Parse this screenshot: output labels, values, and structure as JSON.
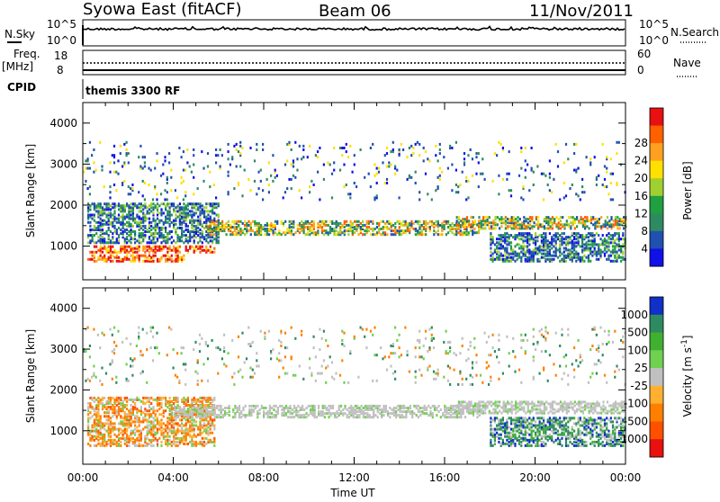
{
  "header": {
    "station": "Syowa East (fitACF)",
    "beam": "Beam 06",
    "date": "11/Nov/2011"
  },
  "strips": {
    "nsky_label": "N.Sky",
    "nsky_ticks": [
      "10^5",
      "10^0"
    ],
    "nsearch_label": "N.Search",
    "nsearch_ticks": [
      "10^5",
      "10^0"
    ],
    "freq_label": "Freq.",
    "freq_unit": "[MHz]",
    "freq_ticks": [
      "18",
      "8"
    ],
    "nave_label": "Nave",
    "nave_ticks": [
      "60",
      "0"
    ],
    "cpid_label": "CPID",
    "cpid_text": "themis 3300 RF"
  },
  "chart_data": [
    {
      "type": "heatmap",
      "name": "power",
      "ylabel": "Slant Range [km]",
      "ylim": [
        180,
        4500
      ],
      "yticks": [
        "1000",
        "2000",
        "3000",
        "4000"
      ],
      "xlabel": "Time UT",
      "xlim": [
        0,
        24
      ],
      "xticks": [
        "00:00",
        "04:00",
        "08:00",
        "12:00",
        "16:00",
        "20:00",
        "00:00"
      ],
      "colorbar_label": "Power [dB]",
      "colorbar_ticks": [
        "4",
        "8",
        "12",
        "16",
        "20",
        "24",
        "28"
      ],
      "colorbar_colors": [
        "#1010e8",
        "#2050b0",
        "#2e8a60",
        "#20a040",
        "#a0d030",
        "#ffe000",
        "#ffa020",
        "#ff6000",
        "#e81010"
      ],
      "bands": [
        {
          "t0": 0.2,
          "t1": 5.8,
          "r0": 820,
          "r1": 1000,
          "level": "strong"
        },
        {
          "t0": 0.2,
          "t1": 4.5,
          "r0": 600,
          "r1": 760,
          "level": "strong"
        },
        {
          "t0": 0.2,
          "t1": 6.0,
          "r0": 1050,
          "r1": 2000,
          "level": "mixed"
        },
        {
          "t0": 5.5,
          "t1": 17.5,
          "r0": 1250,
          "r1": 1600,
          "level": "medium"
        },
        {
          "t0": 16.5,
          "t1": 24.0,
          "r0": 1400,
          "r1": 1700,
          "level": "medium"
        },
        {
          "t0": 18.0,
          "t1": 24.0,
          "r0": 600,
          "r1": 1300,
          "level": "mixed"
        },
        {
          "t0": 0.0,
          "t1": 24.0,
          "r0": 2100,
          "r1": 3500,
          "level": "sparse"
        }
      ]
    },
    {
      "type": "heatmap",
      "name": "velocity",
      "ylabel": "Slant Range [km]",
      "ylim": [
        180,
        4500
      ],
      "yticks": [
        "1000",
        "2000",
        "3000",
        "4000"
      ],
      "xlabel": "Time UT",
      "xlim": [
        0,
        24
      ],
      "xticks": [
        "00:00",
        "04:00",
        "08:00",
        "12:00",
        "16:00",
        "20:00",
        "00:00"
      ],
      "colorbar_label": "Velocity [m s^-1]",
      "colorbar_ticks": [
        "1000",
        "500",
        "100",
        "25",
        "-25",
        "-100",
        "-500",
        "-1000"
      ],
      "colorbar_colors": [
        "#1030c8",
        "#2e8a60",
        "#40b030",
        "#70d050",
        "#c0c0c0",
        "#ffb030",
        "#ff8000",
        "#ff5000",
        "#e81010"
      ],
      "bands": [
        {
          "t0": 0.2,
          "t1": 5.8,
          "r0": 600,
          "r1": 1800,
          "level": "orange"
        },
        {
          "t0": 4.0,
          "t1": 17.5,
          "r0": 1300,
          "r1": 1600,
          "level": "grey"
        },
        {
          "t0": 16.5,
          "t1": 24.0,
          "r0": 1400,
          "r1": 1700,
          "level": "grey"
        },
        {
          "t0": 18.0,
          "t1": 24.0,
          "r0": 600,
          "r1": 1300,
          "level": "green"
        },
        {
          "t0": 0.0,
          "t1": 24.0,
          "r0": 2100,
          "r1": 3500,
          "level": "sparse"
        }
      ]
    }
  ]
}
